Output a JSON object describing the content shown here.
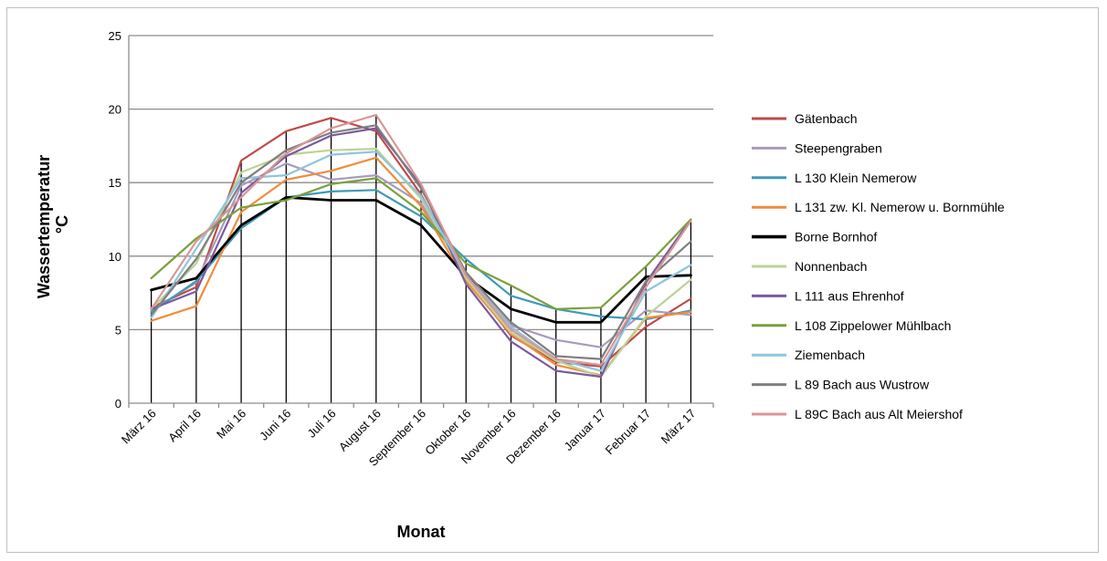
{
  "chart_data": {
    "type": "line",
    "title": "",
    "xlabel": "Monat",
    "ylabel_lines": [
      "Wassertemperatur",
      "°C"
    ],
    "ylim": [
      0,
      25
    ],
    "yticks": [
      0,
      5,
      10,
      15,
      20,
      25
    ],
    "grid": "horizontal",
    "legend_position": "right",
    "categories": [
      "März 16",
      "April 16",
      "Mai 16",
      "Juni 16",
      "Juli 16",
      "August 16",
      "September 16",
      "Oktober 16",
      "November 16",
      "Dezember 16",
      "Januar 17",
      "Februar 17",
      "März 17"
    ],
    "drop_lines": [
      7.7,
      8.5,
      16.5,
      18.5,
      19.4,
      19.6,
      14.9,
      9.8,
      8.0,
      6.4,
      6.5,
      9.3,
      12.5
    ],
    "series": [
      {
        "name": "Gätenbach",
        "color": "#be4b48",
        "width": 2.2,
        "values": [
          6.5,
          7.9,
          16.5,
          18.5,
          19.4,
          18.5,
          14.2,
          8.5,
          4.6,
          2.8,
          2.5,
          5.2,
          7.1
        ]
      },
      {
        "name": "Steepengraben",
        "color": "#a99bbd",
        "width": 2.2,
        "values": [
          6.3,
          8.2,
          14.8,
          16.3,
          15.2,
          15.5,
          13.6,
          8.7,
          5.3,
          4.3,
          3.8,
          6.3,
          6.0
        ]
      },
      {
        "name": "L 130 Klein Nemerow",
        "color": "#3e9ab6",
        "width": 2.2,
        "values": [
          6.2,
          8.3,
          11.9,
          14.0,
          14.4,
          14.5,
          12.7,
          9.8,
          7.3,
          6.4,
          5.9,
          5.7,
          6.3
        ]
      },
      {
        "name": "L 131 zw. Kl. Nemerow u. Bornmühle",
        "color": "#f08c3c",
        "width": 2.2,
        "values": [
          5.6,
          6.6,
          13.0,
          15.2,
          15.8,
          16.7,
          13.4,
          8.3,
          4.7,
          2.6,
          1.9,
          5.8,
          6.2
        ]
      },
      {
        "name": "Borne Bornhof",
        "color": "#000000",
        "width": 2.8,
        "values": [
          7.7,
          8.5,
          12.1,
          14.0,
          13.8,
          13.8,
          12.1,
          8.6,
          6.4,
          5.5,
          5.5,
          8.6,
          8.7
        ]
      },
      {
        "name": "Nonnenbach",
        "color": "#bcd397",
        "width": 2.2,
        "values": [
          6.4,
          9.5,
          15.7,
          16.9,
          17.2,
          17.3,
          13.9,
          8.5,
          4.8,
          2.9,
          1.8,
          5.9,
          8.4
        ]
      },
      {
        "name": "L 111 aus Ehrenhof",
        "color": "#7a5a9f",
        "width": 2.2,
        "values": [
          6.4,
          7.6,
          14.3,
          16.8,
          18.2,
          18.7,
          14.8,
          8.1,
          4.2,
          2.2,
          1.8,
          8.2,
          12.5
        ]
      },
      {
        "name": "L 108 Zippelower Mühlbach",
        "color": "#79a13c",
        "width": 2.2,
        "values": [
          8.5,
          11.2,
          13.3,
          13.8,
          14.9,
          15.3,
          13.0,
          9.5,
          8.0,
          6.4,
          6.5,
          9.3,
          12.5
        ]
      },
      {
        "name": "Ziemenbach",
        "color": "#8fc4dc",
        "width": 2.2,
        "values": [
          5.8,
          10.5,
          15.3,
          15.5,
          16.9,
          17.1,
          14.1,
          8.7,
          5.2,
          3.0,
          2.2,
          7.6,
          9.4
        ]
      },
      {
        "name": "L 89 Bach aus Wustrow",
        "color": "#7f7f7f",
        "width": 2.2,
        "values": [
          6.0,
          9.8,
          15.0,
          17.2,
          18.4,
          18.9,
          14.6,
          8.9,
          5.5,
          3.2,
          3.0,
          8.3,
          11.0
        ]
      },
      {
        "name": "L 89C Bach aus Alt Meiershof",
        "color": "#d99694",
        "width": 2.2,
        "values": [
          6.4,
          11.0,
          14.0,
          17.0,
          18.7,
          19.6,
          14.9,
          8.7,
          5.0,
          3.0,
          2.6,
          7.9,
          12.4
        ]
      }
    ]
  }
}
